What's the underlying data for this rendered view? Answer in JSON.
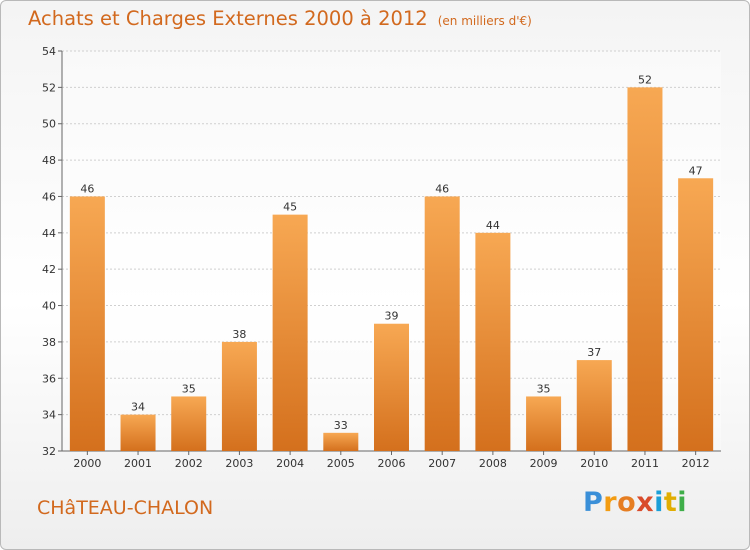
{
  "title": "Achats et Charges Externes 2000 à 2012",
  "unit_note": "(en milliers d'€)",
  "commune": "CHâTEAU-CHALON",
  "logo": {
    "text": "Proxiti",
    "letter_colors": [
      "#3a8fd8",
      "#f39c12",
      "#e67e22",
      "#d94b2b",
      "#1a9fd8",
      "#e1ad01",
      "#3fae49"
    ]
  },
  "colors": {
    "bar_top": "#f7a853",
    "bar_bottom": "#d4701d",
    "text": "#d2691e"
  },
  "chart_data": {
    "type": "bar",
    "categories": [
      "2000",
      "2001",
      "2002",
      "2003",
      "2004",
      "2005",
      "2006",
      "2007",
      "2008",
      "2009",
      "2010",
      "2011",
      "2012"
    ],
    "values": [
      46,
      34,
      35,
      38,
      45,
      33,
      39,
      46,
      44,
      35,
      37,
      52,
      47
    ],
    "ylim": [
      32,
      54
    ],
    "yticks": [
      32,
      34,
      36,
      38,
      40,
      42,
      44,
      46,
      48,
      50,
      52,
      54
    ],
    "title": "Achats et Charges Externes 2000 à 2012",
    "xlabel": "",
    "ylabel": "",
    "grid": true
  }
}
